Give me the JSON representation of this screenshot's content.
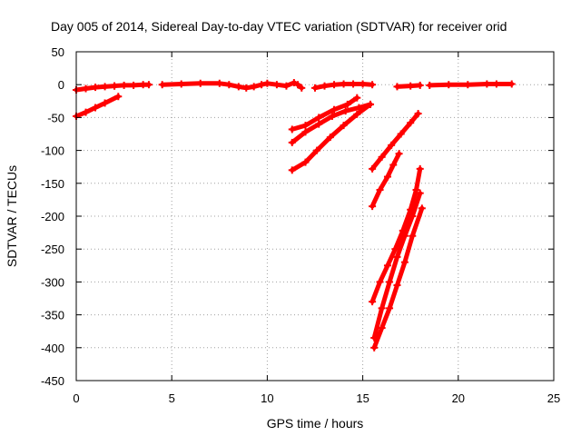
{
  "chart_data": {
    "type": "scatter",
    "title": "Day 005 of 2014, Sidereal Day-to-day VTEC variation (SDTVAR) for receiver orid",
    "xlabel": "GPS time / hours",
    "ylabel": "SDTVAR / TECUs",
    "xlim": [
      0,
      25
    ],
    "ylim": [
      -450,
      50
    ],
    "xticks": [
      0,
      5,
      10,
      15,
      20,
      25
    ],
    "yticks": [
      50,
      0,
      -50,
      -100,
      -150,
      -200,
      -250,
      -300,
      -350,
      -400,
      -450
    ],
    "grid": true,
    "legend": "none",
    "marker": "plus",
    "color": "#ff0000",
    "series": [
      {
        "x": [
          0.0,
          0.5,
          1.0,
          1.5,
          2.0
        ],
        "y": [
          -8,
          -6,
          -4,
          -3,
          -2
        ]
      },
      {
        "x": [
          2.0,
          2.5,
          3.0,
          3.5,
          3.8
        ],
        "y": [
          -2,
          -1,
          -1,
          0,
          0
        ]
      },
      {
        "x": [
          0.0,
          0.5,
          1.0,
          1.5,
          2.2
        ],
        "y": [
          -48,
          -42,
          -35,
          -28,
          -18
        ]
      },
      {
        "x": [
          4.5,
          5.5,
          6.5,
          7.5,
          8.0,
          8.5,
          8.9,
          9.3,
          9.7,
          10.0,
          10.5,
          11.0,
          11.4,
          11.6,
          11.8
        ],
        "y": [
          0,
          1,
          2,
          2,
          0,
          -3,
          -5,
          -3,
          0,
          2,
          0,
          -2,
          3,
          0,
          -5
        ]
      },
      {
        "x": [
          12.5,
          13.0,
          13.5,
          14.0,
          14.5,
          15.0,
          15.5
        ],
        "y": [
          -5,
          -2,
          0,
          1,
          1,
          1,
          0
        ]
      },
      {
        "x": [
          16.8,
          17.5,
          18.0
        ],
        "y": [
          -3,
          -2,
          -1
        ]
      },
      {
        "x": [
          18.5,
          19.5,
          20.5,
          21.5,
          22.0,
          22.8
        ],
        "y": [
          -1,
          0,
          0,
          1,
          1,
          1
        ]
      },
      {
        "x": [
          11.3,
          12.0,
          12.7,
          13.5,
          14.2,
          14.7
        ],
        "y": [
          -68,
          -62,
          -50,
          -38,
          -30,
          -20
        ]
      },
      {
        "x": [
          11.3,
          12.0,
          12.7,
          13.4,
          14.1,
          14.8,
          15.4
        ],
        "y": [
          -88,
          -72,
          -60,
          -48,
          -40,
          -35,
          -30
        ]
      },
      {
        "x": [
          11.3,
          12.0,
          12.6,
          13.3,
          14.0,
          14.7,
          15.4
        ],
        "y": [
          -130,
          -118,
          -100,
          -80,
          -62,
          -45,
          -30
        ]
      },
      {
        "x": [
          15.5,
          16.0,
          16.5,
          17.0,
          17.5,
          17.9
        ],
        "y": [
          -128,
          -110,
          -92,
          -75,
          -58,
          -44
        ]
      },
      {
        "x": [
          15.5,
          15.9,
          16.3,
          16.6,
          16.9
        ],
        "y": [
          -185,
          -160,
          -140,
          -122,
          -105
        ]
      },
      {
        "x": [
          15.5,
          15.9,
          16.3,
          16.7,
          17.1,
          17.5,
          17.8,
          18.0
        ],
        "y": [
          -330,
          -300,
          -275,
          -250,
          -222,
          -190,
          -160,
          -128
        ]
      },
      {
        "x": [
          15.6,
          16.0,
          16.4,
          16.8,
          17.2,
          17.6,
          18.0
        ],
        "y": [
          -385,
          -340,
          -300,
          -262,
          -230,
          -200,
          -165
        ]
      },
      {
        "x": [
          15.6,
          16.0,
          16.4,
          16.8,
          17.2,
          17.6,
          18.1
        ],
        "y": [
          -400,
          -370,
          -340,
          -305,
          -270,
          -230,
          -188
        ]
      }
    ]
  }
}
